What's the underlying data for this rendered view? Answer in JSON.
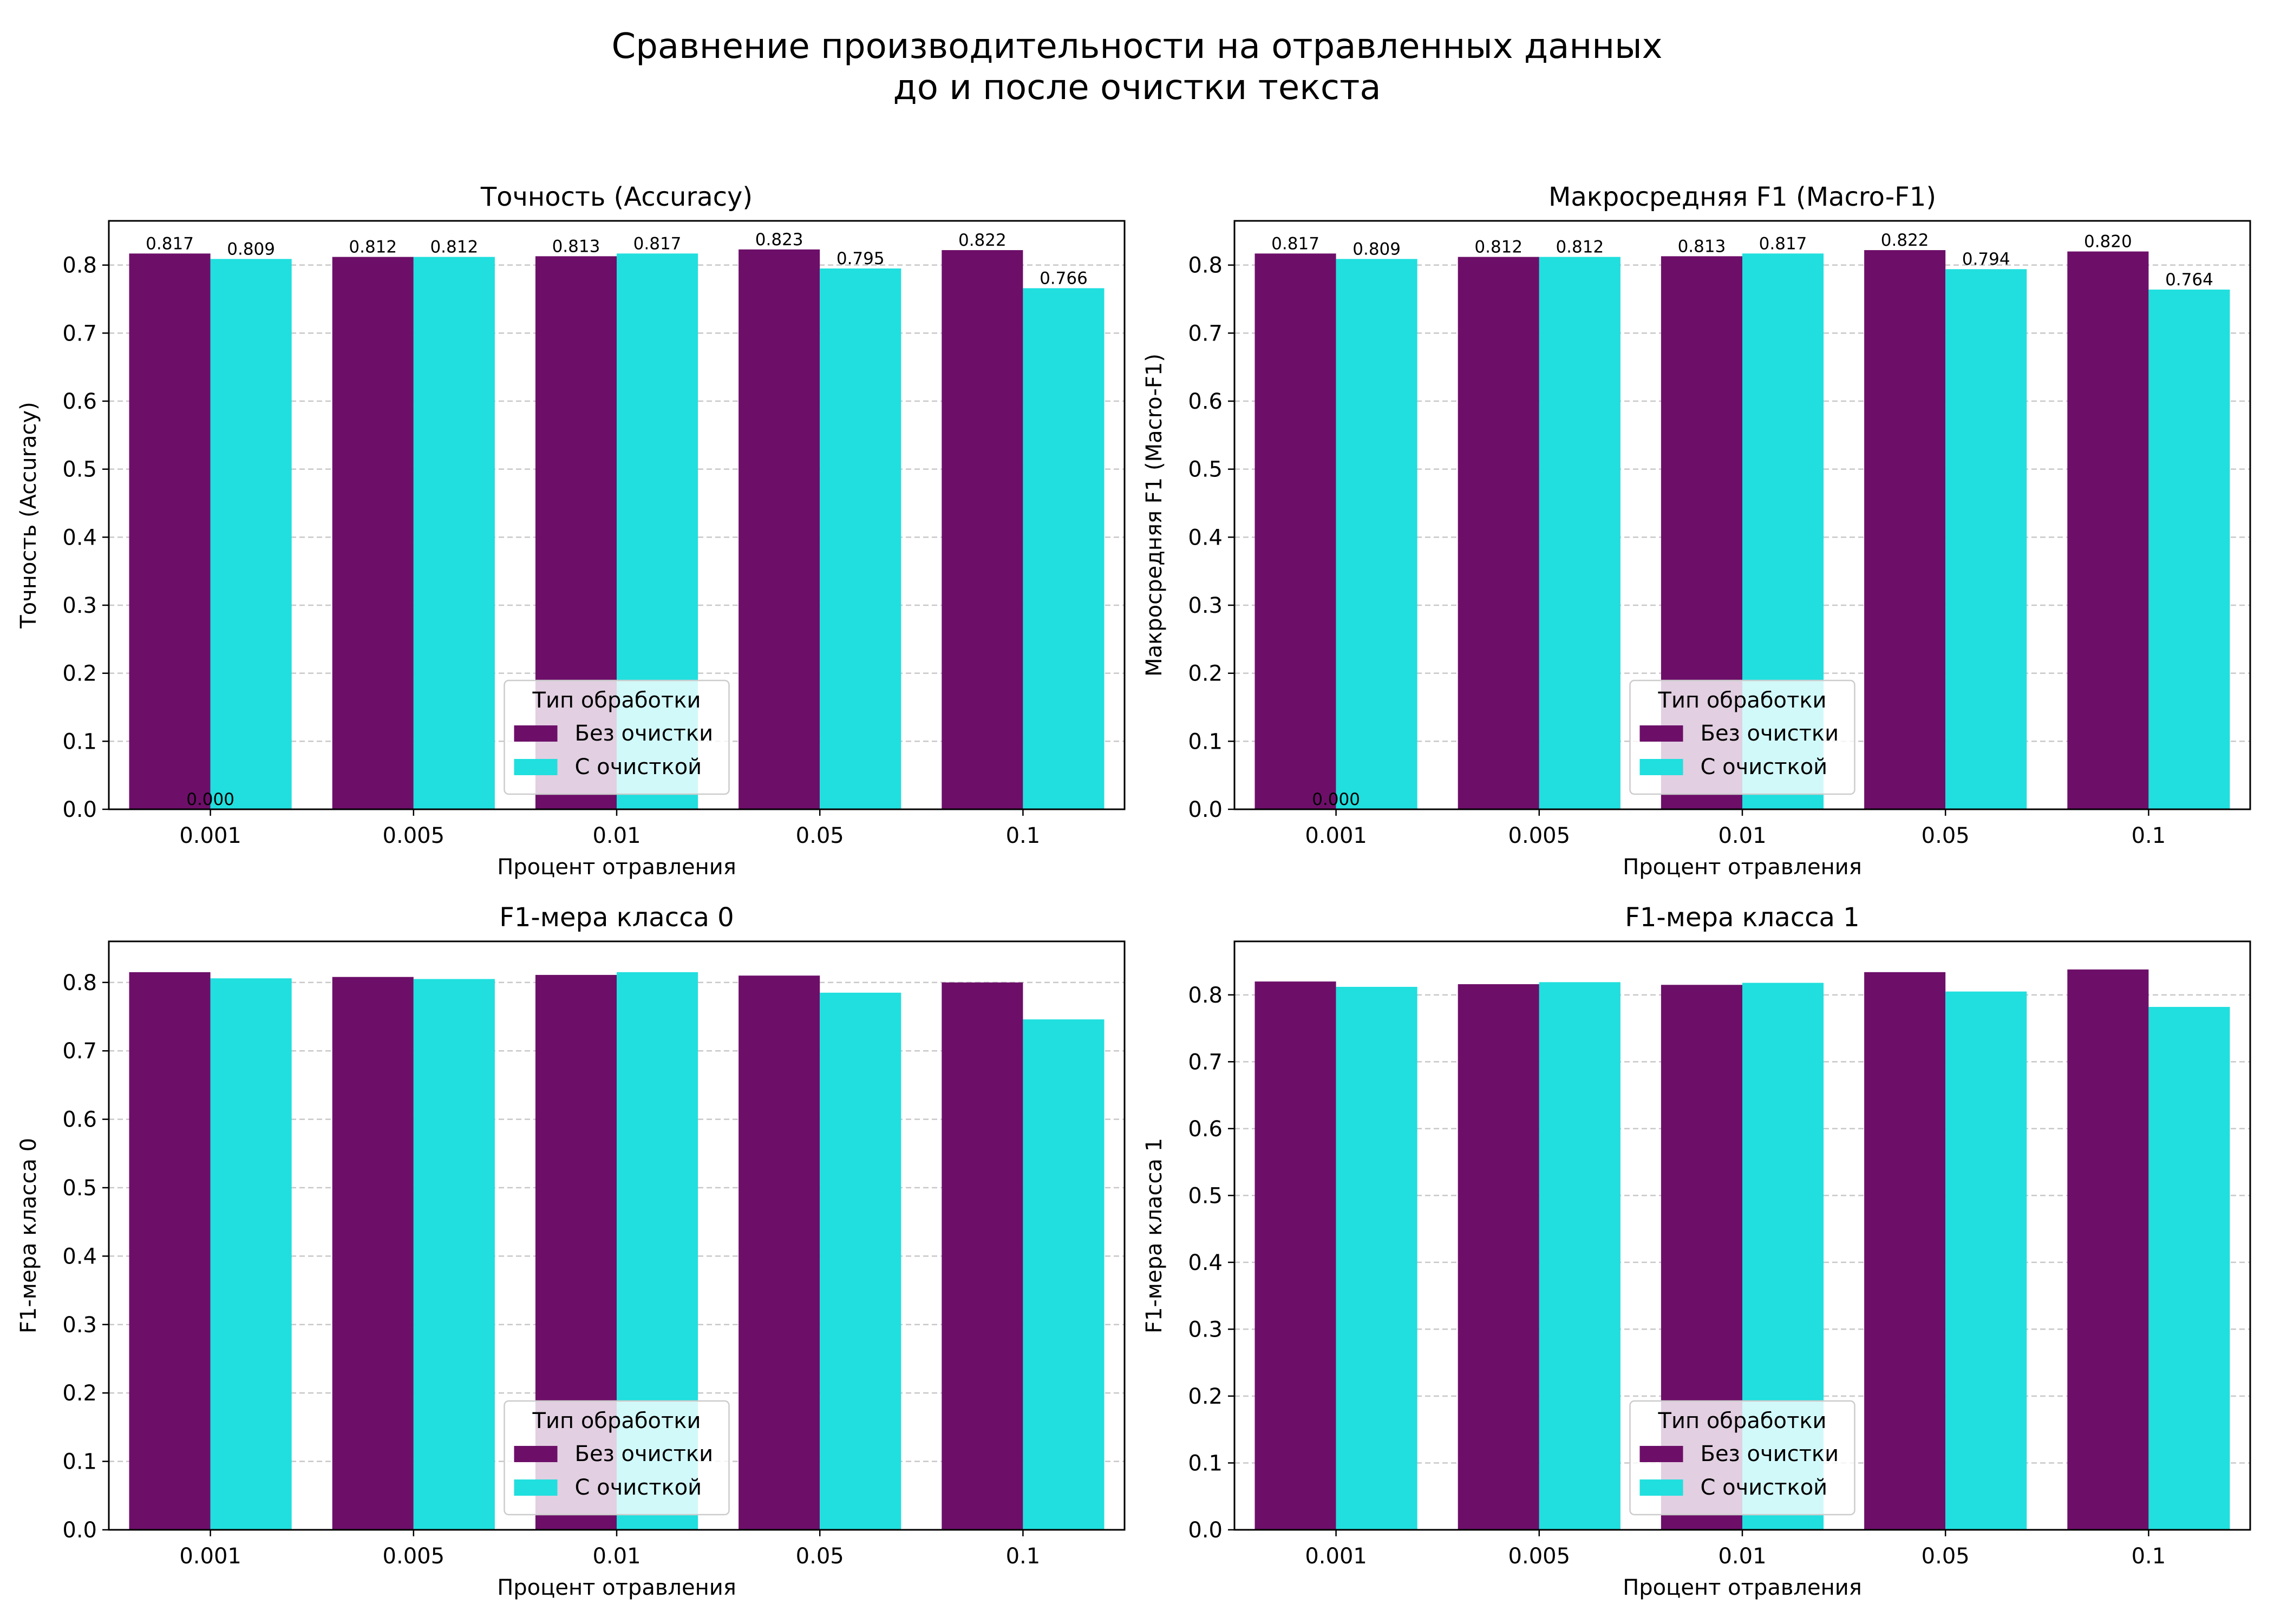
{
  "figure": {
    "title_line1": "Сравнение производительности на отравленных данных",
    "title_line2": "до и после очистки текста"
  },
  "colors": {
    "no_clean": "#6d0f69",
    "clean": "#20dfde",
    "grid": "#c8c8c8",
    "axis": "#000000"
  },
  "chart_data": [
    {
      "type": "bar",
      "title": "Точность (Accuracy)",
      "xlabel": "Процент отравления",
      "ylabel": "Точность (Accuracy)",
      "categories": [
        "0.001",
        "0.005",
        "0.01",
        "0.05",
        "0.1"
      ],
      "ylim": [
        0,
        0.865
      ],
      "yticks": [
        "0.0",
        "0.1",
        "0.2",
        "0.3",
        "0.4",
        "0.5",
        "0.6",
        "0.7",
        "0.8"
      ],
      "grid": "y, dashed",
      "legend": {
        "title": "Тип обработки",
        "placement": "lower center"
      },
      "series": [
        {
          "name": "Без очистки",
          "values": [
            0.817,
            0.812,
            0.813,
            0.823,
            0.822
          ],
          "labels": [
            "0.817",
            "0.812",
            "0.813",
            "0.823",
            "0.822"
          ]
        },
        {
          "name": "С очисткой",
          "values": [
            0.809,
            0.812,
            0.817,
            0.795,
            0.766
          ],
          "labels": [
            "0.809",
            "0.812",
            "0.817",
            "0.795",
            "0.766"
          ]
        }
      ],
      "annotations": [
        {
          "text": "0.000",
          "x": "0.001",
          "y": 0.0
        }
      ]
    },
    {
      "type": "bar",
      "title": "Макросредняя F1 (Macro-F1)",
      "xlabel": "Процент отравления",
      "ylabel": "Макросредняя F1 (Macro-F1)",
      "categories": [
        "0.001",
        "0.005",
        "0.01",
        "0.05",
        "0.1"
      ],
      "ylim": [
        0,
        0.865
      ],
      "yticks": [
        "0.0",
        "0.1",
        "0.2",
        "0.3",
        "0.4",
        "0.5",
        "0.6",
        "0.7",
        "0.8"
      ],
      "grid": "y, dashed",
      "legend": {
        "title": "Тип обработки",
        "placement": "lower center"
      },
      "series": [
        {
          "name": "Без очистки",
          "values": [
            0.817,
            0.812,
            0.813,
            0.822,
            0.82
          ],
          "labels": [
            "0.817",
            "0.812",
            "0.813",
            "0.822",
            "0.820"
          ]
        },
        {
          "name": "С очисткой",
          "values": [
            0.809,
            0.812,
            0.817,
            0.794,
            0.764
          ],
          "labels": [
            "0.809",
            "0.812",
            "0.817",
            "0.794",
            "0.764"
          ]
        }
      ],
      "annotations": [
        {
          "text": "0.000",
          "x": "0.001",
          "y": 0.0
        }
      ]
    },
    {
      "type": "bar",
      "title": "F1-мера класса 0",
      "xlabel": "Процент отравления",
      "ylabel": "F1-мера класса 0",
      "categories": [
        "0.001",
        "0.005",
        "0.01",
        "0.05",
        "0.1"
      ],
      "ylim": [
        0,
        0.86
      ],
      "yticks": [
        "0.0",
        "0.1",
        "0.2",
        "0.3",
        "0.4",
        "0.5",
        "0.6",
        "0.7",
        "0.8"
      ],
      "grid": "y, dashed",
      "legend": {
        "title": "Тип обработки",
        "placement": "lower center"
      },
      "series": [
        {
          "name": "Без очистки",
          "values": [
            0.815,
            0.808,
            0.811,
            0.81,
            0.8
          ]
        },
        {
          "name": "С очисткой",
          "values": [
            0.806,
            0.805,
            0.815,
            0.785,
            0.746
          ]
        }
      ]
    },
    {
      "type": "bar",
      "title": "F1-мера класса 1",
      "xlabel": "Процент отравления",
      "ylabel": "F1-мера класса 1",
      "categories": [
        "0.001",
        "0.005",
        "0.01",
        "0.05",
        "0.1"
      ],
      "ylim": [
        0,
        0.88
      ],
      "yticks": [
        "0.0",
        "0.1",
        "0.2",
        "0.3",
        "0.4",
        "0.5",
        "0.6",
        "0.7",
        "0.8"
      ],
      "grid": "y, dashed",
      "legend": {
        "title": "Тип обработки",
        "placement": "lower center"
      },
      "series": [
        {
          "name": "Без очистки",
          "values": [
            0.82,
            0.816,
            0.815,
            0.834,
            0.838
          ]
        },
        {
          "name": "С очисткой",
          "values": [
            0.812,
            0.819,
            0.818,
            0.805,
            0.782
          ]
        }
      ]
    }
  ]
}
